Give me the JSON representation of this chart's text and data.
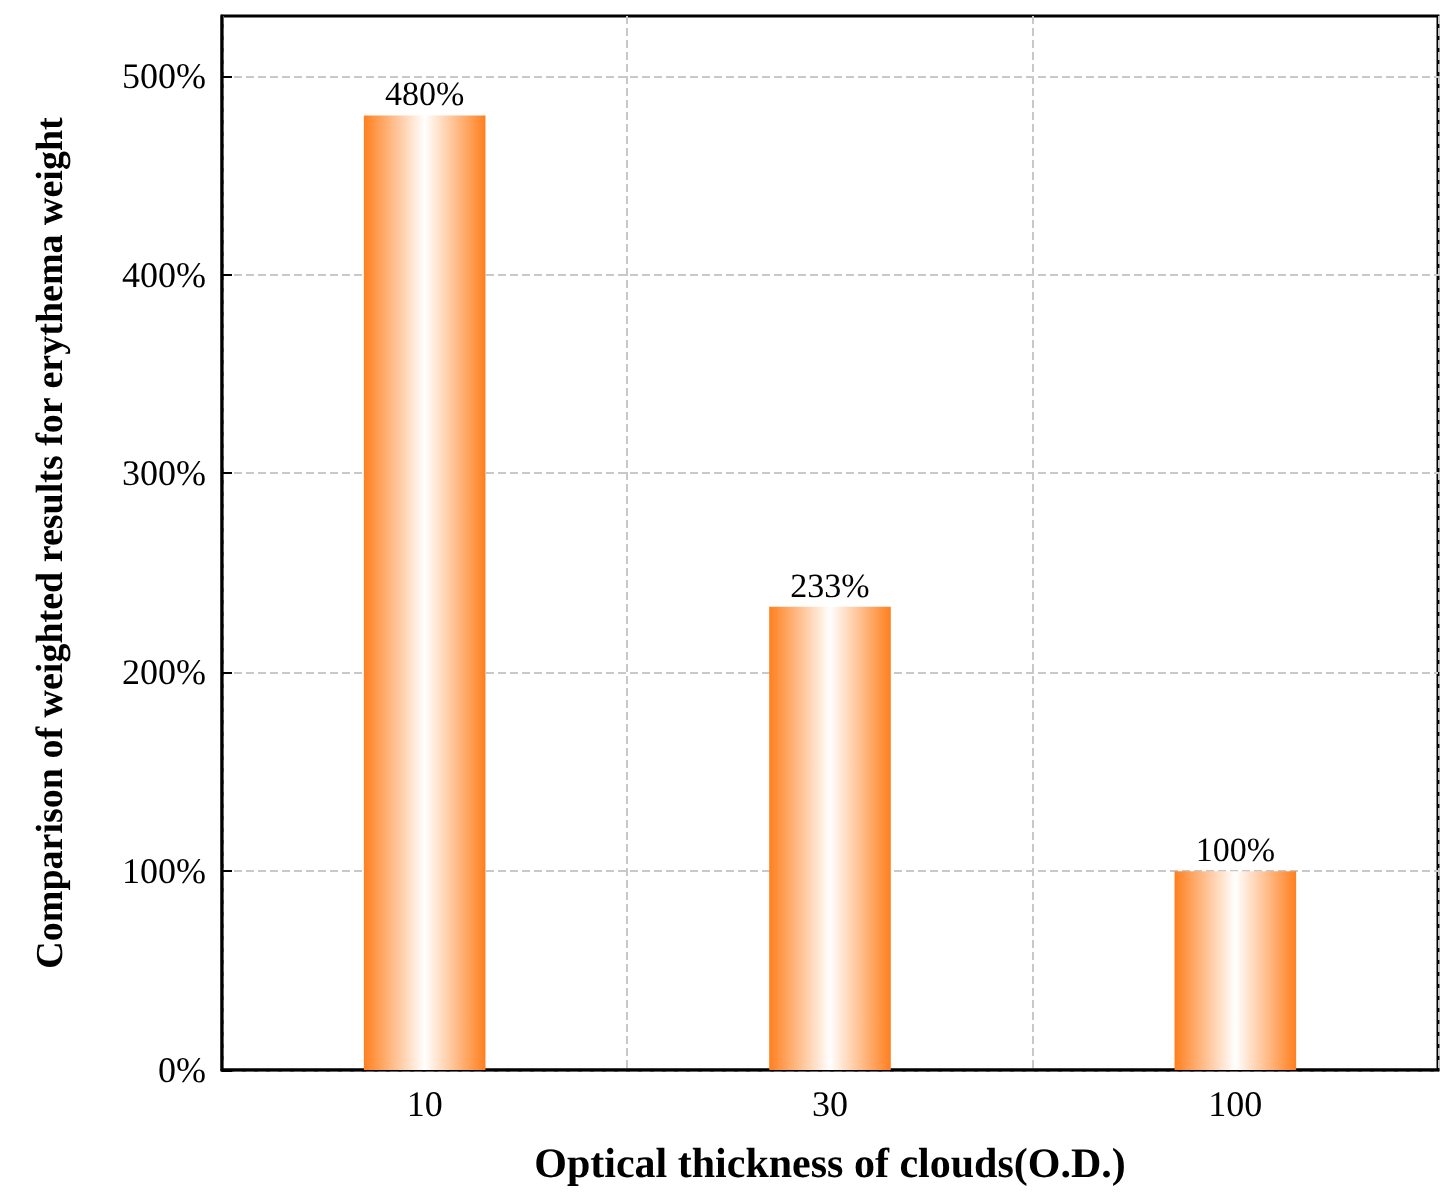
{
  "chart_data": {
    "type": "bar",
    "xlabel": "Optical thickness of clouds(O.D.)",
    "ylabel": "Comparison of weighted results for erythema weight",
    "categories": [
      "10",
      "30",
      "100"
    ],
    "values": [
      480,
      233,
      100
    ],
    "color": "#ff7f1e",
    "value_labels": [
      "480%",
      "233%",
      "100%"
    ],
    "ylim": [
      0,
      530
    ],
    "yticks": [
      {
        "value": 0,
        "label": "0%"
      },
      {
        "value": 100,
        "label": "100%"
      },
      {
        "value": 200,
        "label": "200%"
      },
      {
        "value": 300,
        "label": "300%"
      },
      {
        "value": 400,
        "label": "400%"
      },
      {
        "value": 500,
        "label": "500%"
      }
    ],
    "grid": true
  }
}
